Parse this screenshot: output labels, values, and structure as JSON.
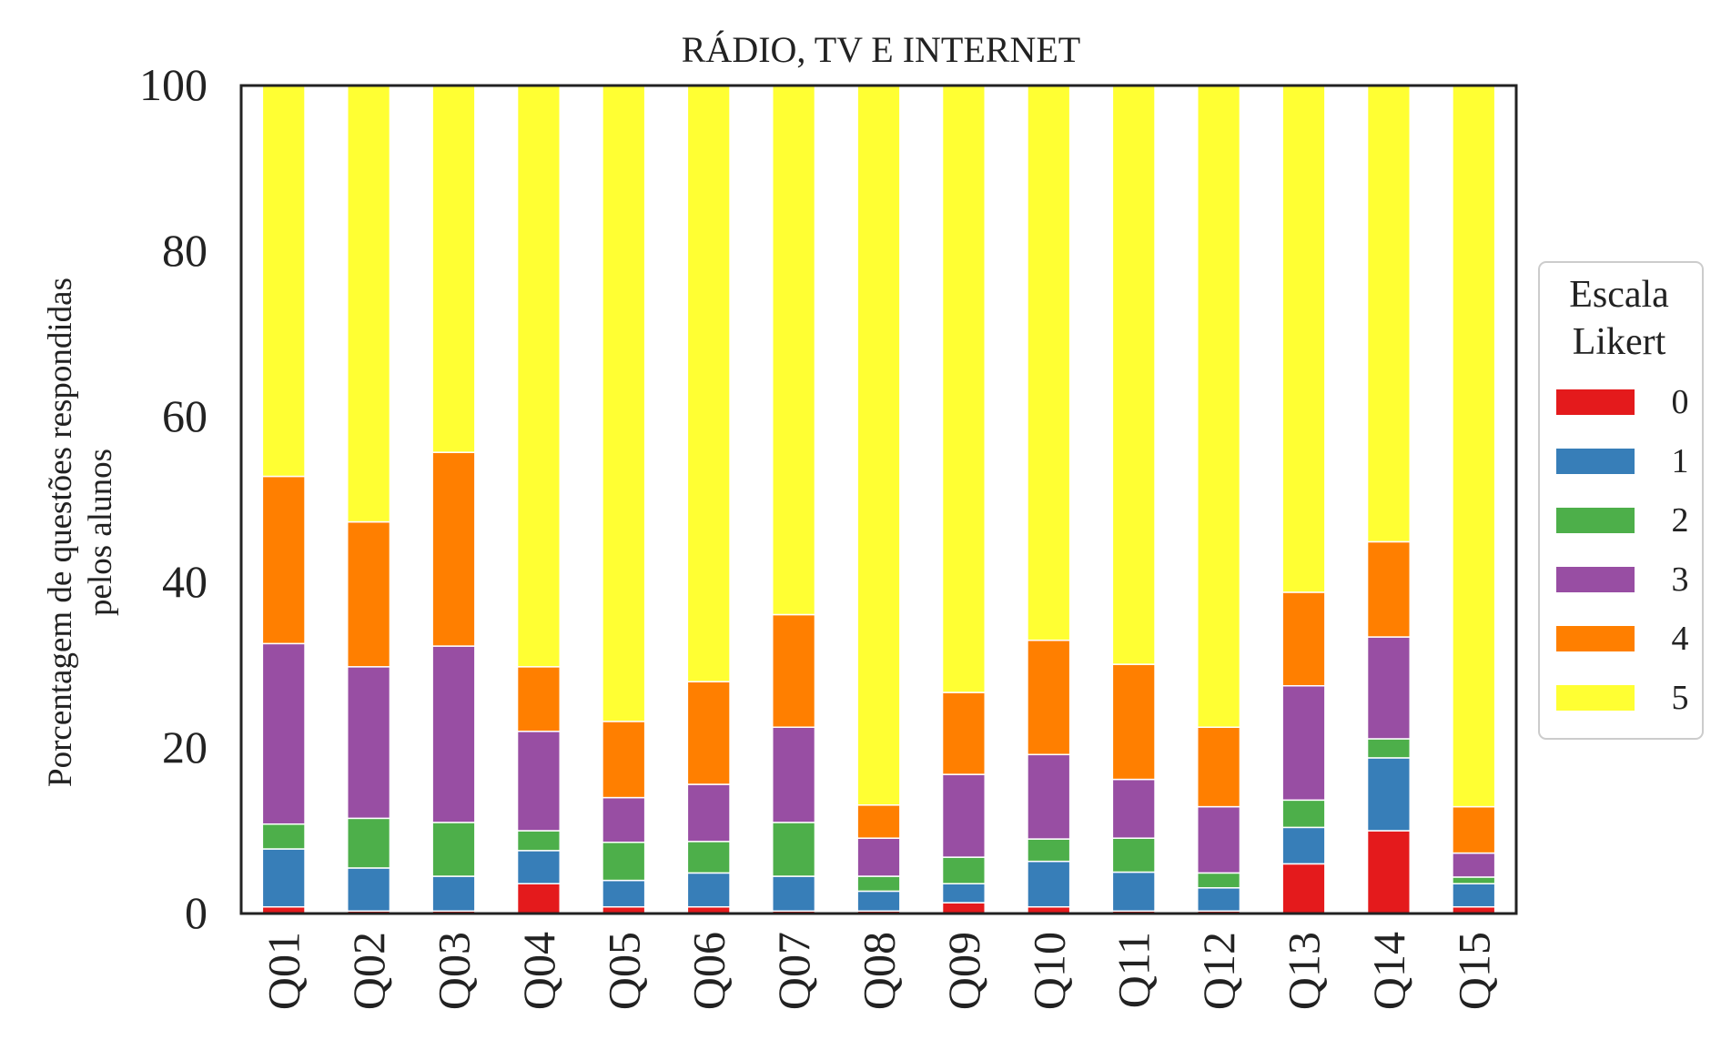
{
  "chart_data": {
    "type": "bar",
    "stacked": true,
    "title": "RÁDIO, TV E INTERNET",
    "xlabel": "",
    "ylabel_lines": [
      "Porcentagem de questões respondidas",
      "pelos alunos"
    ],
    "ylim": [
      0,
      100
    ],
    "yticks": [
      0,
      20,
      40,
      60,
      80,
      100
    ],
    "grid": false,
    "legend": {
      "title_lines": [
        "Escala",
        "Likert"
      ],
      "placement": "right, outside plot"
    },
    "categories": [
      "Q01",
      "Q02",
      "Q03",
      "Q04",
      "Q05",
      "Q06",
      "Q07",
      "Q08",
      "Q09",
      "Q10",
      "Q11",
      "Q12",
      "Q13",
      "Q14",
      "Q15"
    ],
    "series": [
      {
        "name": "0",
        "color": "#e41a1c",
        "values": [
          0.8,
          0.3,
          0.3,
          3.6,
          0.8,
          0.8,
          0.3,
          0.3,
          1.3,
          0.8,
          0.3,
          0.3,
          6.0,
          10.0,
          0.8
        ]
      },
      {
        "name": "1",
        "color": "#377eb8",
        "values": [
          7.0,
          5.2,
          4.2,
          4.0,
          3.2,
          4.1,
          4.2,
          2.4,
          2.3,
          5.5,
          4.7,
          2.8,
          4.4,
          8.8,
          2.8
        ]
      },
      {
        "name": "2",
        "color": "#4daf4a",
        "values": [
          3.0,
          6.0,
          6.5,
          2.4,
          4.6,
          3.8,
          6.5,
          1.8,
          3.2,
          2.7,
          4.1,
          1.8,
          3.3,
          2.3,
          0.8
        ]
      },
      {
        "name": "3",
        "color": "#984ea3",
        "values": [
          21.8,
          18.3,
          21.3,
          12.0,
          5.4,
          6.9,
          11.5,
          4.6,
          10.0,
          10.2,
          7.1,
          8.0,
          13.8,
          12.3,
          2.9
        ]
      },
      {
        "name": "4",
        "color": "#ff7f00",
        "values": [
          20.2,
          17.5,
          23.4,
          7.8,
          9.2,
          12.4,
          13.6,
          4.0,
          9.9,
          13.8,
          13.9,
          9.6,
          11.3,
          11.5,
          5.6
        ]
      },
      {
        "name": "5",
        "color": "#ffff33",
        "values": [
          47.2,
          52.7,
          44.3,
          70.2,
          76.8,
          72.0,
          63.9,
          86.9,
          73.3,
          67.0,
          69.9,
          77.5,
          61.2,
          55.1,
          87.1
        ]
      }
    ]
  }
}
